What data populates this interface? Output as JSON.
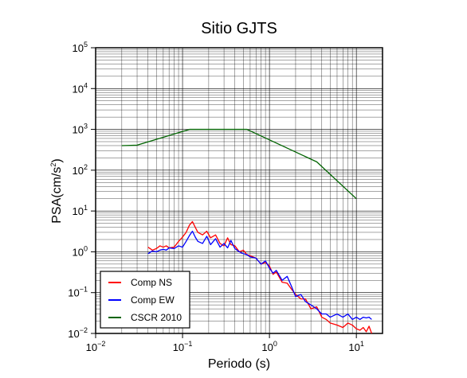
{
  "chart_data": {
    "type": "line",
    "title": "Sitio GJTS",
    "xlabel": "Periodo (s)",
    "ylabel_main": "PSA(cm/s",
    "ylabel_sup": "2",
    "ylabel_end": ")",
    "x_scale": "log",
    "y_scale": "log",
    "xlim": [
      0.01,
      20
    ],
    "ylim": [
      0.01,
      100000
    ],
    "grid": true,
    "legend_position": "bottom-left",
    "x_ticks": [
      {
        "value": 0.01,
        "base": "10",
        "exp": "−2"
      },
      {
        "value": 0.1,
        "base": "10",
        "exp": "−1"
      },
      {
        "value": 1,
        "base": "10",
        "exp": "0"
      },
      {
        "value": 10,
        "base": "10",
        "exp": "1"
      }
    ],
    "y_ticks": [
      {
        "value": 0.01,
        "base": "10",
        "exp": "−2"
      },
      {
        "value": 0.1,
        "base": "10",
        "exp": "−1"
      },
      {
        "value": 1,
        "base": "10",
        "exp": "0"
      },
      {
        "value": 10,
        "base": "10",
        "exp": "1"
      },
      {
        "value": 100,
        "base": "10",
        "exp": "2"
      },
      {
        "value": 1000,
        "base": "10",
        "exp": "3"
      },
      {
        "value": 10000,
        "base": "10",
        "exp": "4"
      },
      {
        "value": 100000,
        "base": "10",
        "exp": "5"
      }
    ],
    "series": [
      {
        "name": "Comp NS",
        "color": "#ff0000",
        "x": [
          0.04,
          0.045,
          0.05,
          0.055,
          0.06,
          0.065,
          0.07,
          0.08,
          0.09,
          0.1,
          0.11,
          0.12,
          0.13,
          0.14,
          0.15,
          0.17,
          0.19,
          0.21,
          0.24,
          0.27,
          0.3,
          0.33,
          0.36,
          0.4,
          0.45,
          0.5,
          0.55,
          0.6,
          0.7,
          0.8,
          0.9,
          1.0,
          1.1,
          1.2,
          1.4,
          1.6,
          1.8,
          2.0,
          2.3,
          2.6,
          3.0,
          3.5,
          4.0,
          4.5,
          5.0,
          6.0,
          7.0,
          8.0,
          9.0,
          10.0,
          11.0,
          12.0,
          13.0,
          14.0,
          15.0
        ],
        "y": [
          1.3,
          1.1,
          1.2,
          1.4,
          1.3,
          1.4,
          1.25,
          1.3,
          1.8,
          2.3,
          3.0,
          4.5,
          5.5,
          4.0,
          3.0,
          2.6,
          3.2,
          2.2,
          2.6,
          1.6,
          1.4,
          2.2,
          1.5,
          1.4,
          1.0,
          1.1,
          0.85,
          0.8,
          0.7,
          0.5,
          0.55,
          0.45,
          0.28,
          0.32,
          0.18,
          0.17,
          0.12,
          0.09,
          0.07,
          0.07,
          0.04,
          0.045,
          0.025,
          0.022,
          0.018,
          0.016,
          0.014,
          0.018,
          0.016,
          0.013,
          0.012,
          0.014,
          0.011,
          0.015,
          0.01
        ]
      },
      {
        "name": "Comp EW",
        "color": "#0000ff",
        "x": [
          0.04,
          0.045,
          0.05,
          0.055,
          0.06,
          0.065,
          0.07,
          0.08,
          0.09,
          0.1,
          0.11,
          0.12,
          0.13,
          0.14,
          0.15,
          0.17,
          0.19,
          0.21,
          0.24,
          0.27,
          0.3,
          0.33,
          0.36,
          0.4,
          0.45,
          0.5,
          0.55,
          0.6,
          0.7,
          0.8,
          0.9,
          1.0,
          1.1,
          1.2,
          1.4,
          1.6,
          1.8,
          2.0,
          2.3,
          2.6,
          3.0,
          3.5,
          4.0,
          4.5,
          5.0,
          6.0,
          7.0,
          8.0,
          9.0,
          10.0,
          11.0,
          12.0,
          13.0,
          14.0,
          15.0
        ],
        "y": [
          0.9,
          1.05,
          1.0,
          1.1,
          1.15,
          1.1,
          1.25,
          1.2,
          1.4,
          1.3,
          1.8,
          2.5,
          3.2,
          2.3,
          1.8,
          1.6,
          2.4,
          1.5,
          2.1,
          1.3,
          1.6,
          1.25,
          1.9,
          1.2,
          1.0,
          0.9,
          0.85,
          0.75,
          0.7,
          0.5,
          0.6,
          0.4,
          0.3,
          0.35,
          0.2,
          0.25,
          0.14,
          0.08,
          0.09,
          0.06,
          0.05,
          0.04,
          0.03,
          0.03,
          0.025,
          0.03,
          0.025,
          0.03,
          0.022,
          0.025,
          0.022,
          0.025,
          0.024,
          0.025,
          0.022
        ]
      },
      {
        "name": "CSCR 2010",
        "color": "#006400",
        "x": [
          0.02,
          0.03,
          0.12,
          0.55,
          3.5,
          10.0
        ],
        "y": [
          400,
          410,
          1000,
          1000,
          160,
          20
        ]
      }
    ]
  }
}
